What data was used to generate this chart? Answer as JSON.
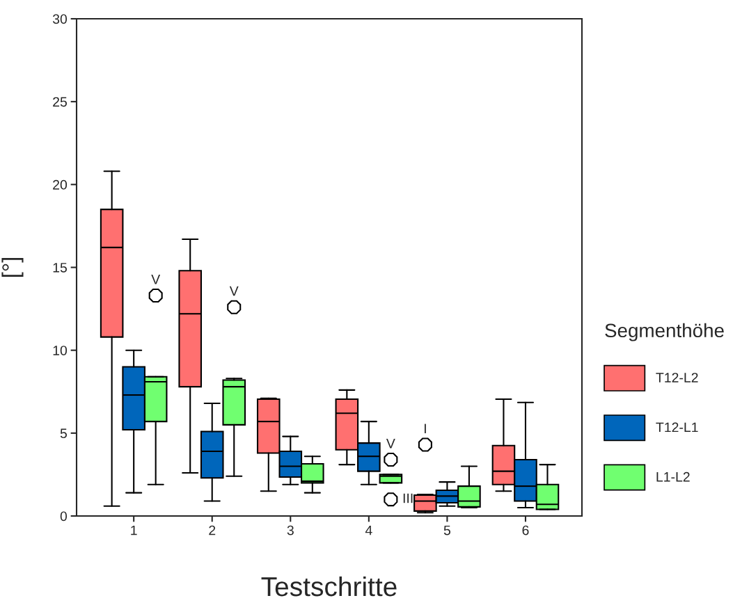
{
  "chart_data": {
    "type": "box",
    "xlabel": "Testschritte",
    "ylabel": "[°]",
    "legend_title": "Segmenthöhe",
    "legend": "right",
    "categories": [
      "1",
      "2",
      "3",
      "4",
      "5",
      "6"
    ],
    "ylim": [
      0,
      30
    ],
    "yticks": [
      0,
      5,
      10,
      15,
      20,
      25,
      30
    ],
    "grid": false,
    "series": [
      {
        "name": "T12-L2",
        "color": "#ff7070",
        "boxes": [
          {
            "low": 0.6,
            "q1": 10.8,
            "median": 16.2,
            "q3": 18.5,
            "high": 20.8
          },
          {
            "low": 2.6,
            "q1": 7.8,
            "median": 12.2,
            "q3": 14.8,
            "high": 16.7
          },
          {
            "low": 1.5,
            "q1": 3.8,
            "median": 5.7,
            "q3": 7.05,
            "high": 7.1
          },
          {
            "low": 3.1,
            "q1": 4.0,
            "median": 6.2,
            "q3": 7.05,
            "high": 7.6
          },
          {
            "low": 0.2,
            "q1": 0.3,
            "median": 0.9,
            "q3": 1.26,
            "high": 1.3,
            "outliers": [
              4.3
            ]
          },
          {
            "low": 1.5,
            "q1": 1.9,
            "median": 2.7,
            "q3": 4.25,
            "high": 7.05
          }
        ]
      },
      {
        "name": "T12-L1",
        "color": "#0066bb",
        "boxes": [
          {
            "low": 1.4,
            "q1": 5.2,
            "median": 7.3,
            "q3": 9.0,
            "high": 10.0
          },
          {
            "low": 0.9,
            "q1": 2.3,
            "median": 3.9,
            "q3": 5.1,
            "high": 6.8
          },
          {
            "low": 1.9,
            "q1": 2.35,
            "median": 3.0,
            "q3": 3.9,
            "high": 4.8
          },
          {
            "low": 1.9,
            "q1": 2.7,
            "median": 3.6,
            "q3": 4.4,
            "high": 5.7
          },
          {
            "low": 0.6,
            "q1": 0.8,
            "median": 1.2,
            "q3": 1.55,
            "high": 2.05
          },
          {
            "low": 0.5,
            "q1": 0.9,
            "median": 1.8,
            "q3": 3.4,
            "high": 6.85
          }
        ]
      },
      {
        "name": "L1-L2",
        "color": "#70ff70",
        "boxes": [
          {
            "low": 1.9,
            "q1": 5.7,
            "median": 8.1,
            "q3": 8.4,
            "high": 8.4,
            "outliers": [
              13.3
            ]
          },
          {
            "low": 2.4,
            "q1": 5.5,
            "median": 7.8,
            "q3": 8.2,
            "high": 8.3,
            "outliers": [
              12.6
            ]
          },
          {
            "low": 1.4,
            "q1": 2.0,
            "median": 2.1,
            "q3": 3.15,
            "high": 3.6
          },
          {
            "low": 2.0,
            "q1": 2.0,
            "median": 2.4,
            "q3": 2.5,
            "high": 2.5,
            "outliers": [
              3.4,
              1.0
            ]
          },
          {
            "low": 0.5,
            "q1": 0.55,
            "median": 0.9,
            "q3": 1.8,
            "high": 3.0
          },
          {
            "low": 0.4,
            "q1": 0.4,
            "median": 0.7,
            "q3": 1.9,
            "high": 3.1
          }
        ]
      }
    ],
    "annotations": [
      "V",
      "V",
      "V",
      "III",
      "I"
    ]
  }
}
